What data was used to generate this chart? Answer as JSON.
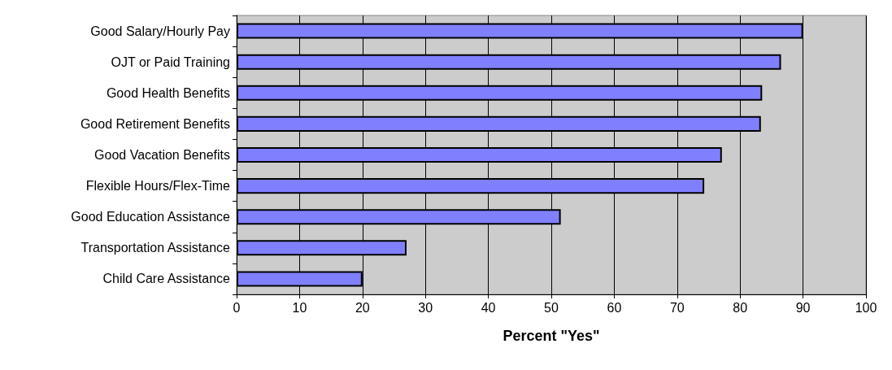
{
  "chart_data": {
    "type": "bar",
    "orientation": "horizontal",
    "xlabel": "Percent \"Yes\"",
    "categories": [
      "Good Salary/Hourly Pay",
      "OJT or Paid Training",
      "Good Health Benefits",
      "Good Retirement Benefits",
      "Good Vacation Benefits",
      "Flexible Hours/Flex-Time",
      "Good Education Assistance",
      "Transportation Assistance",
      "Child Care Assistance"
    ],
    "values": [
      90,
      86.5,
      83.5,
      83.3,
      77.1,
      74.3,
      51.5,
      27,
      20
    ],
    "color": "#8080ff",
    "xlim": [
      0,
      100
    ],
    "xticks": [
      0,
      10,
      20,
      30,
      40,
      50,
      60,
      70,
      80,
      90,
      100
    ],
    "grid": "x"
  }
}
